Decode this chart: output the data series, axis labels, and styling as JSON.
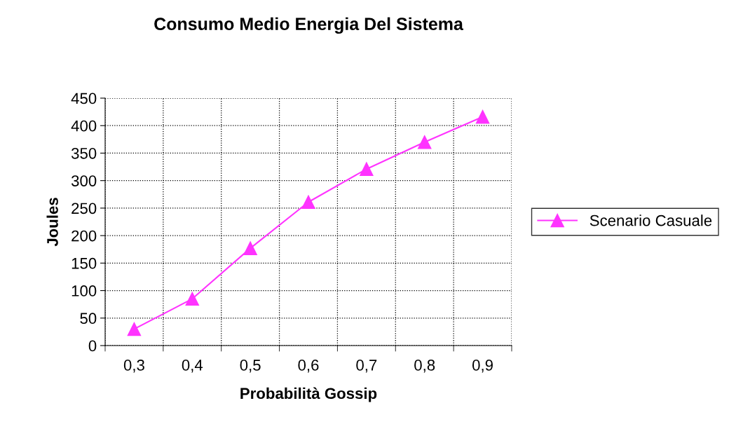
{
  "chart_data": {
    "type": "line",
    "title": "Consumo Medio Energia Del Sistema",
    "xlabel": "Probabilità Gossip",
    "ylabel": "Joules",
    "categories": [
      "0,3",
      "0,4",
      "0,5",
      "0,6",
      "0,7",
      "0,8",
      "0,9"
    ],
    "series": [
      {
        "name": "Scenario Casuale",
        "color": "#ff33ff",
        "values": [
          30,
          85,
          177,
          261,
          321,
          370,
          416
        ]
      }
    ],
    "ylim": [
      0,
      450
    ],
    "yticks": [
      0,
      50,
      100,
      150,
      200,
      250,
      300,
      350,
      400,
      450
    ],
    "grid": true,
    "legend": "right",
    "marker": "triangle",
    "line_style": "solid"
  }
}
